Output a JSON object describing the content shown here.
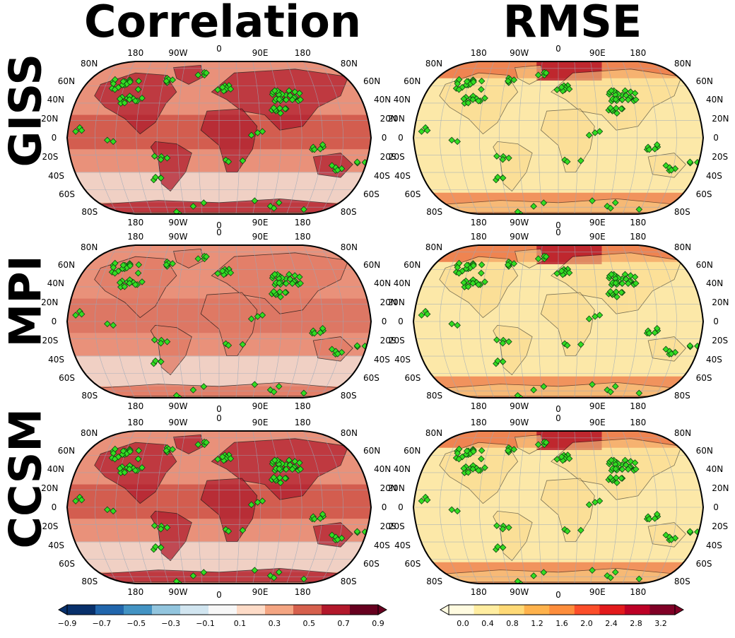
{
  "column_titles": [
    "Correlation",
    "RMSE"
  ],
  "row_titles": [
    "GISS",
    "MPI",
    "CCSM"
  ],
  "longitude_ticks": [
    "180",
    "90W",
    "0",
    "90E",
    "180"
  ],
  "latitude_ticks_left": [
    "80N",
    "60N",
    "40N",
    "20N",
    "0",
    "20S",
    "40S",
    "60S",
    "80S"
  ],
  "latitude_ticks_right": [
    "80N",
    "60N",
    "40N",
    "20N",
    "0",
    "20S",
    "40S",
    "60S",
    "80S"
  ],
  "colorbars": [
    {
      "name": "correlation",
      "ticks": [
        "−0.9",
        "−0.7",
        "−0.5",
        "−0.3",
        "−0.1",
        "0.1",
        "0.3",
        "0.5",
        "0.7",
        "0.9"
      ],
      "colors": [
        "#08306b",
        "#2166ac",
        "#4393c3",
        "#92c5de",
        "#d1e5f0",
        "#f7f7f7",
        "#fddbc7",
        "#f4a582",
        "#d6604d",
        "#b2182b",
        "#67001f"
      ]
    },
    {
      "name": "rmse",
      "ticks": [
        "0.0",
        "0.4",
        "0.8",
        "1.2",
        "1.6",
        "2.0",
        "2.4",
        "2.8",
        "3.2"
      ],
      "colors": [
        "#fffbe0",
        "#ffeda0",
        "#fed976",
        "#feb24c",
        "#fd8d3c",
        "#fc4e2a",
        "#e31a1c",
        "#bd0026",
        "#800026"
      ]
    }
  ],
  "map_fill_colors": {
    "correlation_ocean": "#e9917a",
    "correlation_land": "#c9473d",
    "correlation_high": "#b01d2e",
    "correlation_low": "#f1d7cc",
    "rmse_base": "#fce8a8",
    "rmse_high": "#e95a2c",
    "rmse_max": "#b31025",
    "site_marker": "#33dd22"
  }
}
